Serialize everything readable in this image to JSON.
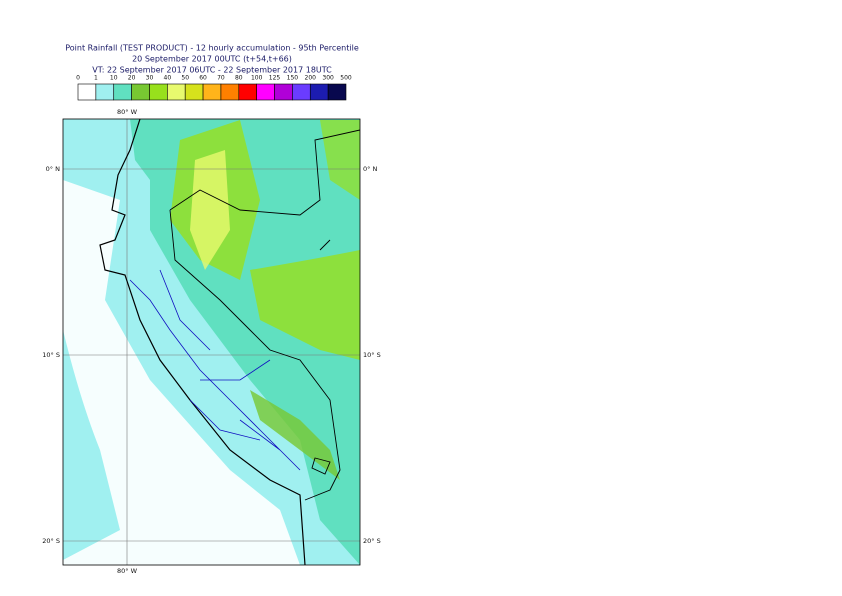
{
  "header": {
    "title": "Point Rainfall (TEST PRODUCT) - 12 hourly accumulation - 95th Percentile",
    "base_time": "20 September 2017 00UTC (t+54,t+66)",
    "valid_time": "VT: 22 September 2017 06UTC - 22 September 2017 18UTC"
  },
  "legend": {
    "levels": [
      0,
      1,
      10,
      20,
      30,
      40,
      50,
      60,
      70,
      80,
      100,
      125,
      150,
      200,
      300,
      500
    ],
    "colors": [
      "#ffffff",
      "#a0f0f0",
      "#60e0c0",
      "#78c832",
      "#98e01c",
      "#e8fa6e",
      "#d6e21c",
      "#ffb41a",
      "#ff8000",
      "#ff0000",
      "#ff00ff",
      "#b000d8",
      "#6a3cff",
      "#1c1cb0",
      "#08084e"
    ]
  },
  "map": {
    "lon_label_top": "80° W",
    "lon_label_bottom": "80° W",
    "lat_labels": [
      "0° N",
      "10° S",
      "20° S"
    ]
  }
}
